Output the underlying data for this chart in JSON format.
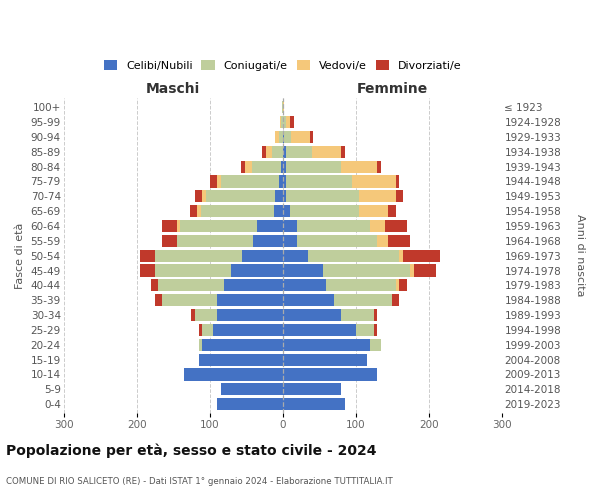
{
  "age_groups": [
    "0-4",
    "5-9",
    "10-14",
    "15-19",
    "20-24",
    "25-29",
    "30-34",
    "35-39",
    "40-44",
    "45-49",
    "50-54",
    "55-59",
    "60-64",
    "65-69",
    "70-74",
    "75-79",
    "80-84",
    "85-89",
    "90-94",
    "95-99",
    "100+"
  ],
  "birth_years": [
    "2019-2023",
    "2014-2018",
    "2009-2013",
    "2004-2008",
    "1999-2003",
    "1994-1998",
    "1989-1993",
    "1984-1988",
    "1979-1983",
    "1974-1978",
    "1969-1973",
    "1964-1968",
    "1959-1963",
    "1954-1958",
    "1949-1953",
    "1944-1948",
    "1939-1943",
    "1934-1938",
    "1929-1933",
    "1924-1928",
    "≤ 1923"
  ],
  "maschi_celibi": [
    90,
    85,
    135,
    115,
    110,
    95,
    90,
    90,
    80,
    70,
    55,
    40,
    35,
    12,
    10,
    5,
    2,
    0,
    0,
    0,
    0
  ],
  "maschi_coniugati": [
    0,
    0,
    0,
    0,
    5,
    15,
    30,
    75,
    90,
    105,
    120,
    105,
    105,
    100,
    95,
    80,
    40,
    15,
    5,
    2,
    1
  ],
  "maschi_vedovi": [
    0,
    0,
    0,
    0,
    0,
    0,
    0,
    0,
    0,
    0,
    0,
    0,
    5,
    5,
    5,
    5,
    10,
    8,
    5,
    2,
    0
  ],
  "maschi_divorziati": [
    0,
    0,
    0,
    0,
    0,
    5,
    5,
    10,
    10,
    20,
    20,
    20,
    20,
    10,
    10,
    10,
    5,
    5,
    0,
    0,
    0
  ],
  "femmine_nubili": [
    85,
    80,
    130,
    115,
    120,
    100,
    80,
    70,
    60,
    55,
    35,
    20,
    20,
    10,
    5,
    5,
    5,
    5,
    2,
    0,
    0
  ],
  "femmine_coniugate": [
    0,
    0,
    0,
    0,
    15,
    25,
    45,
    80,
    95,
    120,
    125,
    110,
    100,
    95,
    100,
    90,
    75,
    35,
    10,
    5,
    1
  ],
  "femmine_vedove": [
    0,
    0,
    0,
    0,
    0,
    0,
    0,
    0,
    5,
    5,
    5,
    15,
    20,
    40,
    50,
    60,
    50,
    40,
    25,
    5,
    1
  ],
  "femmine_divorziate": [
    0,
    0,
    0,
    0,
    0,
    5,
    5,
    10,
    10,
    30,
    50,
    30,
    30,
    10,
    10,
    5,
    5,
    5,
    5,
    5,
    0
  ],
  "color_celibi": "#4472C4",
  "color_coniugati": "#BFCE9C",
  "color_vedovi": "#F5C87A",
  "color_divorziati": "#C0392B",
  "title": "Popolazione per età, sesso e stato civile - 2024",
  "subtitle": "COMUNE DI RIO SALICETO (RE) - Dati ISTAT 1° gennaio 2024 - Elaborazione TUTTITALIA.IT",
  "label_maschi": "Maschi",
  "label_femmine": "Femmine",
  "label_fasce": "Fasce di età",
  "label_anni": "Anni di nascita",
  "legend_labels": [
    "Celibi/Nubili",
    "Coniugati/e",
    "Vedovi/e",
    "Divorziati/e"
  ],
  "xlim": 300
}
